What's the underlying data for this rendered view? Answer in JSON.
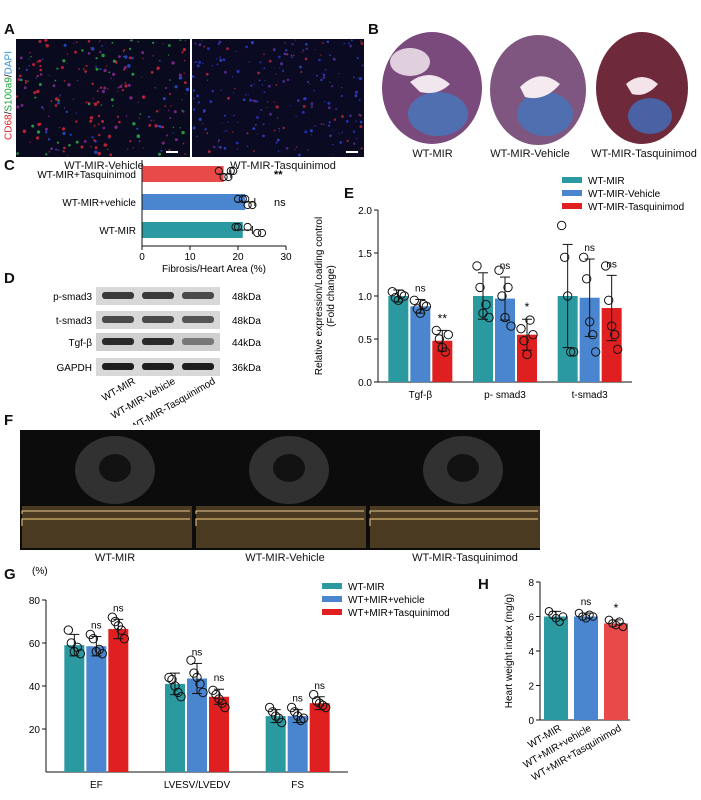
{
  "panels": {
    "A": {
      "letter": "A",
      "side_label_parts": [
        "CD68",
        "/",
        "S100a9",
        "/",
        "DAPI"
      ],
      "side_label_colors": [
        "#e0242a",
        "#111111",
        "#1aa640",
        "#111111",
        "#2f8fd6"
      ],
      "image_labels": [
        "WT-MIR-Vehicle",
        "WT-MIR-Tasquinimod"
      ]
    },
    "B": {
      "letter": "B",
      "image_labels": [
        "WT-MIR",
        "WT-MIR-Vehicle",
        "WT-MIR-Tasquinimod"
      ]
    },
    "D": {
      "letter": "D",
      "band_labels": [
        "p-smad3",
        "t-smad3",
        "Tgf-β",
        "GAPDH"
      ],
      "kda_labels": [
        "48kDa",
        "48kDa",
        "44kDa",
        "36kDa"
      ],
      "lane_labels": [
        "WT-MIR",
        "WT-MIR-Vehicle",
        "WT-MIR-Tasquinimod"
      ]
    },
    "F": {
      "letter": "F",
      "image_labels": [
        "WT-MIR",
        "WT-MIR-Vehicle",
        "WT-MIR-Tasquinimod"
      ]
    }
  },
  "chart_data": [
    {
      "panel": "C",
      "letter": "C",
      "type": "bar",
      "orientation": "horizontal",
      "categories": [
        "WT-MIR+Tasquinimod",
        "WT-MIR+vehicle",
        "WT-MIR"
      ],
      "values": [
        17,
        21.5,
        21
      ],
      "errors": [
        1.5,
        2,
        2
      ],
      "colors": [
        "#e84a4a",
        "#4a86cf",
        "#2a9aa0"
      ],
      "points": [
        [
          16,
          18,
          19,
          17,
          18.5
        ],
        [
          20,
          22,
          21,
          23,
          21.5
        ],
        [
          20,
          24,
          22,
          25,
          19.5
        ]
      ],
      "annotations": [
        "**",
        "ns",
        ""
      ],
      "xlabel": "Fibrosis/Heart Area (%)",
      "xlim": [
        0,
        30
      ],
      "xticks": [
        "0",
        "10",
        "20",
        "30"
      ]
    },
    {
      "panel": "E",
      "letter": "E",
      "type": "bar",
      "categories": [
        "Tgf-β",
        "p- smad3",
        "t-smad3"
      ],
      "series": [
        {
          "name": "WT-MIR",
          "color": "#2a9aa0",
          "values": [
            1.0,
            1.0,
            1.0
          ],
          "errors": [
            0.07,
            0.27,
            0.6
          ],
          "points": [
            [
              1.05,
              0.98,
              0.95,
              1.02,
              1.0
            ],
            [
              1.35,
              1.1,
              0.8,
              0.9,
              0.75
            ],
            [
              1.82,
              1.45,
              1.0,
              0.35,
              0.35
            ]
          ]
        },
        {
          "name": "WT-MIR-Vehicle",
          "color": "#4a86cf",
          "values": [
            0.88,
            0.97,
            0.98
          ],
          "errors": [
            0.08,
            0.25,
            0.45
          ],
          "points": [
            [
              0.95,
              0.85,
              0.8,
              0.9,
              0.88
            ],
            [
              1.3,
              1.0,
              0.75,
              1.1,
              0.65
            ],
            [
              1.45,
              1.2,
              0.7,
              0.55,
              0.35
            ]
          ]
        },
        {
          "name": "WT-MIR-Tasquinimod",
          "color": "#e02020",
          "values": [
            0.48,
            0.55,
            0.86
          ],
          "errors": [
            0.12,
            0.18,
            0.38
          ],
          "points": [
            [
              0.6,
              0.5,
              0.4,
              0.35,
              0.55
            ],
            [
              0.62,
              0.48,
              0.32,
              0.72,
              0.55
            ],
            [
              1.35,
              0.95,
              0.65,
              0.55,
              0.38
            ]
          ]
        }
      ],
      "annotations": [
        [
          "",
          "ns",
          "**"
        ],
        [
          "",
          "ns",
          "*"
        ],
        [
          "",
          "ns",
          "ns"
        ]
      ],
      "ylabel_lines": [
        "Relative expression/Loading control",
        "(Fold change)"
      ],
      "ylim": [
        0,
        2.0
      ],
      "yticks": [
        "0.0",
        "0.5",
        "1.0",
        "1.5",
        "2.0"
      ],
      "legend_position": "top-right"
    },
    {
      "panel": "G",
      "letter": "G",
      "type": "bar",
      "categories": [
        "EF",
        "LVESV/LVEDV",
        "FS"
      ],
      "unit_label": "(%)",
      "series": [
        {
          "name": "WT-MIR",
          "color": "#2a9aa0",
          "values": [
            59,
            41,
            26
          ],
          "errors": [
            5,
            5,
            3
          ],
          "points": [
            [
              66,
              60,
              56,
              58,
              55
            ],
            [
              44,
              43,
              40,
              37,
              35
            ],
            [
              30,
              28,
              26,
              25,
              23
            ]
          ]
        },
        {
          "name": "WT+MIR+vehicle",
          "color": "#4a86cf",
          "values": [
            58.5,
            43.5,
            26
          ],
          "errors": [
            4.5,
            7,
            3
          ],
          "points": [
            [
              64,
              62,
              56,
              57,
              55
            ],
            [
              52,
              46,
              44,
              41,
              37
            ],
            [
              30,
              28,
              26,
              24,
              25
            ]
          ]
        },
        {
          "name": "WT+MIR+Tasquinimod",
          "color": "#e02020",
          "values": [
            66.5,
            35,
            32
          ],
          "errors": [
            4.5,
            3.5,
            3
          ],
          "points": [
            [
              72,
              70,
              68,
              66,
              62
            ],
            [
              38,
              36,
              34,
              32,
              30
            ],
            [
              36,
              33,
              32,
              31,
              30
            ]
          ]
        }
      ],
      "annotations": [
        [
          "",
          "ns",
          "ns"
        ],
        [
          "",
          "ns",
          "ns"
        ],
        [
          "",
          "ns",
          "ns"
        ]
      ],
      "ylim": [
        0,
        80
      ],
      "yticks": [
        "20",
        "40",
        "60",
        "80"
      ],
      "legend_position": "top-right"
    },
    {
      "panel": "H",
      "letter": "H",
      "type": "bar",
      "categories": [
        "WT-MIR",
        "WT+MIR+vehicle",
        "WT+MIR+Tasquinimod"
      ],
      "values": [
        6.0,
        6.0,
        5.6
      ],
      "errors": [
        0.3,
        0.2,
        0.2
      ],
      "colors": [
        "#2a9aa0",
        "#4a86cf",
        "#e84a4a"
      ],
      "points": [
        [
          6.3,
          6.1,
          5.9,
          5.7,
          6.0
        ],
        [
          6.2,
          6.0,
          5.9,
          6.1,
          6.0
        ],
        [
          5.8,
          5.6,
          5.5,
          5.7,
          5.4
        ]
      ],
      "annotations": [
        "",
        "ns",
        "*"
      ],
      "ylabel": "Heart weight index (mg/g)",
      "ylim": [
        0,
        8
      ],
      "yticks": [
        "0",
        "2",
        "4",
        "6",
        "8"
      ]
    }
  ]
}
